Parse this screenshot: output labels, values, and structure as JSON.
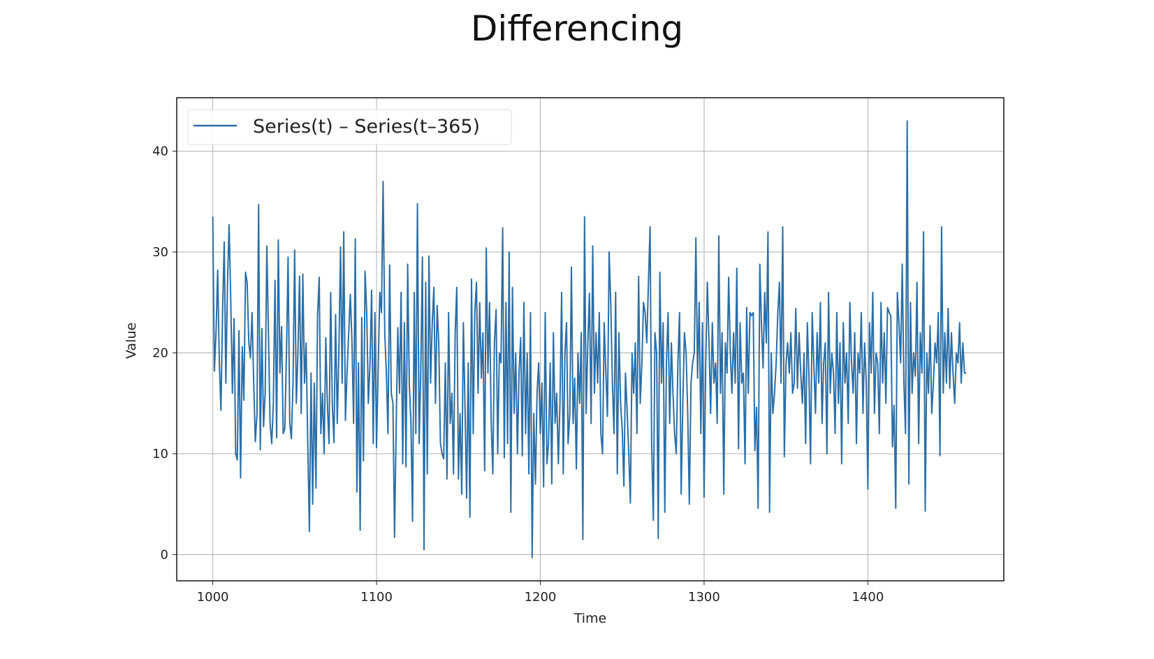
{
  "title": "Differencing",
  "chart_data": {
    "type": "line",
    "title": "Differencing",
    "xlabel": "Time",
    "ylabel": "Value",
    "xlim": [
      978,
      1483
    ],
    "ylim": [
      -2.6,
      45.3
    ],
    "xticks": [
      1000,
      1100,
      1200,
      1300,
      1400
    ],
    "yticks": [
      0,
      10,
      20,
      30,
      40
    ],
    "grid": true,
    "legend_position": "top-left",
    "series": [
      {
        "name": "Series(t) – Series(t–365)",
        "color": "#2b6ea6",
        "x_start": 1000,
        "x_step": 1,
        "values": [
          33.5,
          18.2,
          22,
          28.2,
          19,
          14.3,
          24,
          31,
          17,
          27,
          32.7,
          25,
          16,
          23.4,
          10,
          9.4,
          22.2,
          7.6,
          20.6,
          15.3,
          28,
          27,
          21,
          19.5,
          24,
          17,
          11.2,
          14,
          34.7,
          10.4,
          22.4,
          12.7,
          16,
          30.6,
          22,
          13,
          11,
          15,
          27.2,
          11.6,
          31.2,
          18,
          22.6,
          12,
          12.5,
          20,
          29.5,
          13,
          11.5,
          17,
          30.2,
          15,
          20,
          27.6,
          14,
          27.8,
          17,
          21,
          11,
          2.3,
          18,
          5,
          17,
          6.6,
          23.7,
          27.5,
          12,
          16,
          10,
          21.5,
          14.8,
          11,
          26,
          15,
          11.1,
          23.8,
          13,
          20,
          30.5,
          17,
          32,
          13.3,
          18,
          22,
          25.8,
          21,
          13,
          31.3,
          6.2,
          19,
          2.4,
          23.5,
          9.3,
          28.1,
          24,
          15,
          19,
          26.2,
          11,
          24,
          10.6,
          18.5,
          26,
          24,
          37,
          22,
          18,
          12,
          28.7,
          16,
          15,
          1.7,
          13,
          22.5,
          16,
          26,
          9,
          23,
          8.7,
          28.8,
          17,
          13,
          3.3,
          26,
          12,
          34.8,
          11,
          18,
          29.5,
          0.5,
          27,
          8,
          29.6,
          17,
          23,
          26.5,
          15,
          24.7,
          21,
          11,
          10,
          9.5,
          19,
          7.5,
          24,
          13,
          16,
          8,
          22,
          26.5,
          7.5,
          14,
          6,
          23,
          15,
          5.6,
          19,
          3.7,
          27.3,
          12,
          24,
          27,
          16,
          25,
          17.5,
          22,
          8.3,
          30.4,
          18,
          25,
          13,
          8,
          21,
          24.3,
          10,
          20,
          19,
          32.4,
          9.6,
          25,
          11,
          30,
          4.2,
          26.5,
          14,
          20,
          10,
          18,
          21.5,
          9.8,
          25,
          12,
          20,
          8,
          24,
          -0.3,
          14,
          7,
          16,
          19,
          12,
          17,
          6.7,
          24,
          9,
          11,
          19,
          7,
          22,
          13,
          16,
          9,
          15,
          26,
          8,
          20,
          23,
          11,
          14,
          28.5,
          13,
          17.5,
          8.5,
          20,
          15,
          22,
          1.5,
          33.5,
          14,
          21,
          25.9,
          13,
          30.6,
          16,
          22,
          17,
          24,
          12,
          10,
          23,
          18,
          13.7,
          30,
          25,
          17,
          12,
          26,
          8,
          22,
          15,
          12.5,
          6.8,
          18,
          14.2,
          10,
          5.1,
          20,
          16,
          21,
          12,
          27.6,
          15,
          19,
          25,
          24,
          21,
          26.8,
          32.5,
          11,
          3.4,
          22,
          20,
          1.6,
          28,
          17,
          23,
          4.2,
          19,
          24,
          13,
          21,
          16,
          12,
          10,
          19,
          24,
          6,
          15,
          22,
          20,
          14,
          5,
          17,
          19,
          20,
          31.4,
          17.5,
          25,
          12,
          23,
          5.7,
          19,
          27,
          21,
          14,
          23,
          17,
          19,
          13,
          31.6,
          16,
          22,
          6,
          21,
          18,
          27.5,
          20,
          16,
          22,
          17,
          28.4,
          10.5,
          23,
          17,
          18,
          9,
          24.5,
          16,
          24,
          23.7,
          24,
          10.3,
          14.6,
          4.6,
          28.8,
          23,
          18.5,
          26,
          21,
          32,
          4.2,
          20,
          14,
          16,
          19,
          24,
          27,
          17,
          32.5,
          9.7,
          19,
          21,
          18,
          22,
          16,
          17,
          24.4,
          16.5,
          22,
          18,
          15,
          20,
          11,
          23,
          18,
          9,
          24,
          19,
          14,
          22,
          17,
          25,
          13,
          19,
          21,
          10,
          26,
          16,
          20,
          18,
          12,
          24,
          15,
          21,
          9,
          23,
          17,
          20,
          13,
          25,
          19,
          16,
          22,
          11,
          20,
          18,
          24,
          14,
          21,
          17,
          6.5,
          23,
          18,
          26,
          14,
          20,
          19,
          12,
          25,
          17,
          22,
          15,
          24.5,
          24,
          23.7,
          10.7,
          14.8,
          4.6,
          26,
          23,
          19,
          28.8,
          17,
          12,
          43,
          7,
          25,
          16,
          20,
          17.7,
          27,
          11,
          22,
          18,
          32,
          4.3,
          20,
          16,
          22.7,
          14,
          17,
          21,
          19,
          24,
          9.8,
          32.5,
          16,
          22,
          17,
          24.4,
          16.5,
          22,
          18,
          15,
          20,
          19,
          23,
          17,
          21,
          18,
          18
        ]
      }
    ]
  }
}
